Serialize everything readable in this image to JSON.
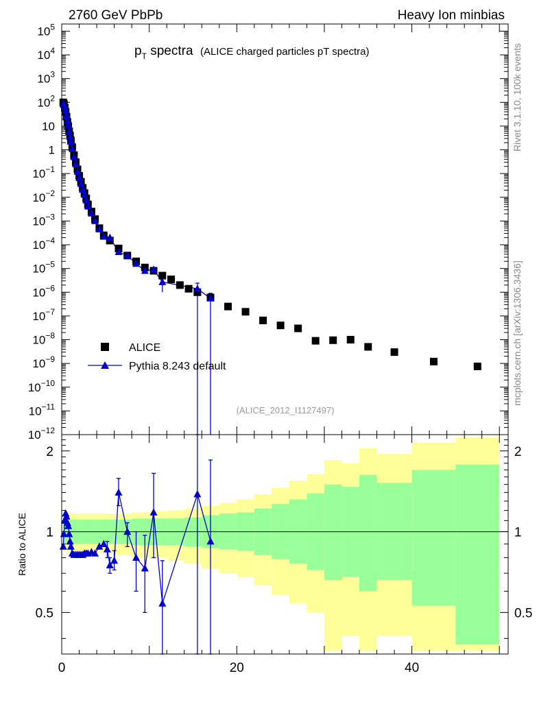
{
  "header": {
    "left": "2760 GeV PbPb",
    "right": "Heavy Ion minbias"
  },
  "title": {
    "main": "p",
    "sub": "T",
    "rest": " spectra",
    "small": "(ALICE charged particles pT spectra)"
  },
  "side_labels": {
    "rivet": "Rivet 3.1.10,  100k events",
    "mcplots": "mcplots.cern.ch [arXiv:1306.3436]"
  },
  "analysis_tag": "(ALICE_2012_I1127497)",
  "ratio_ylabel": "Ratio to ALICE",
  "colors": {
    "alice": "#000000",
    "pythia": "#0000cc",
    "band_outer": "#ffff99",
    "band_inner": "#99ff99"
  },
  "chart_data": [
    {
      "type": "scatter",
      "title": "pT spectra",
      "xlim": [
        0,
        51
      ],
      "ylim": [
        1e-12,
        200000
      ],
      "yscale": "log",
      "ytick_exponents": [
        5,
        4,
        3,
        2,
        1,
        0,
        -1,
        -2,
        -3,
        -4,
        -5,
        -6,
        -7,
        -8,
        -9,
        -10,
        -11,
        -12
      ],
      "legend": {
        "placement": "lower-left",
        "entries": [
          "ALICE",
          "Pythia 8.243 default"
        ]
      },
      "series": [
        {
          "name": "ALICE",
          "marker": "square",
          "x": [
            0.175,
            0.25,
            0.35,
            0.45,
            0.55,
            0.65,
            0.75,
            0.85,
            0.95,
            1.05,
            1.2,
            1.4,
            1.6,
            1.8,
            2.0,
            2.2,
            2.4,
            2.6,
            2.8,
            3.0,
            3.4,
            3.8,
            4.3,
            4.8,
            5.5,
            6.5,
            7.5,
            8.5,
            9.5,
            10.5,
            11.5,
            12.5,
            13.5,
            14.5,
            15.5,
            17.0,
            19.0,
            21.0,
            23.0,
            25.0,
            27.0,
            29.0,
            31.0,
            33.0,
            35.0,
            38.0,
            42.5,
            47.5
          ],
          "y": [
            100,
            85,
            60,
            40,
            25,
            15,
            10,
            6,
            4,
            2.5,
            1.3,
            0.6,
            0.3,
            0.15,
            0.08,
            0.045,
            0.025,
            0.015,
            0.009,
            0.005,
            0.0025,
            0.0012,
            0.0005,
            0.00025,
            0.00015,
            7e-05,
            3.5e-05,
            2e-05,
            1.1e-05,
            8e-06,
            5e-06,
            3.5e-06,
            2e-06,
            1.4e-06,
            1e-06,
            6e-07,
            2.5e-07,
            1.5e-07,
            6.5e-08,
            4e-08,
            3e-08,
            9e-09,
            9.5e-09,
            1e-08,
            5e-09,
            3e-09,
            1.2e-09,
            7.5e-10
          ]
        },
        {
          "name": "Pythia 8.243 default",
          "marker": "triangle",
          "x": [
            0.175,
            0.25,
            0.35,
            0.45,
            0.55,
            0.65,
            0.75,
            0.85,
            0.95,
            1.05,
            1.2,
            1.4,
            1.6,
            1.8,
            2.0,
            2.2,
            2.4,
            2.6,
            2.8,
            3.0,
            3.4,
            3.8,
            4.3,
            4.8,
            5.5,
            6.5,
            7.5,
            8.5,
            9.5,
            10.5,
            11.5,
            15.5,
            17.0
          ],
          "y": [
            90,
            80,
            65,
            45,
            28,
            17,
            11,
            6,
            3.5,
            2.2,
            1.1,
            0.5,
            0.25,
            0.12,
            0.065,
            0.037,
            0.021,
            0.013,
            0.0075,
            0.0041,
            0.0021,
            0.001,
            0.00045,
            0.00022,
            0.0002,
            5e-05,
            3.5e-05,
            1.6e-05,
            8e-06,
            9e-06,
            2.7e-06,
            1.4e-06,
            5.5e-07
          ],
          "err_lo": [
            null,
            null,
            null,
            null,
            null,
            null,
            null,
            null,
            null,
            null,
            null,
            null,
            null,
            null,
            null,
            null,
            null,
            null,
            null,
            null,
            null,
            null,
            null,
            null,
            null,
            null,
            null,
            null,
            null,
            null,
            1e-06,
            1e-12,
            1e-12
          ],
          "err_hi": [
            null,
            null,
            null,
            null,
            null,
            null,
            null,
            null,
            null,
            null,
            null,
            null,
            null,
            null,
            null,
            null,
            null,
            null,
            null,
            null,
            null,
            null,
            null,
            null,
            null,
            null,
            null,
            null,
            null,
            null,
            5e-06,
            2.4e-06,
            9e-07
          ]
        }
      ]
    },
    {
      "type": "line",
      "ylabel": "Ratio to ALICE",
      "xlim": [
        0,
        51
      ],
      "ylim": [
        0.35,
        2.3
      ],
      "yscale": "log",
      "yticks": [
        0.5,
        1,
        2
      ],
      "xticks": [
        0,
        20,
        40
      ],
      "reference_line": 1,
      "bands": {
        "edges": [
          0.15,
          0.3,
          0.6,
          0.8,
          1.0,
          2.0,
          4.0,
          6.0,
          8.0,
          10.0,
          12.0,
          14.0,
          16.0,
          18.0,
          20.0,
          22.0,
          24.0,
          26.0,
          28.0,
          30.0,
          32.0,
          34.0,
          36.0,
          40.0,
          45.0,
          50.0
        ],
        "inner_lo": [
          0.9,
          0.9,
          0.9,
          0.9,
          0.9,
          0.9,
          0.9,
          0.9,
          0.89,
          0.89,
          0.89,
          0.88,
          0.87,
          0.86,
          0.85,
          0.82,
          0.79,
          0.76,
          0.72,
          0.66,
          0.68,
          0.6,
          0.66,
          0.53,
          0.38
        ],
        "inner_hi": [
          1.11,
          1.11,
          1.11,
          1.11,
          1.11,
          1.11,
          1.11,
          1.11,
          1.12,
          1.12,
          1.12,
          1.13,
          1.15,
          1.17,
          1.18,
          1.22,
          1.27,
          1.32,
          1.39,
          1.5,
          1.47,
          1.63,
          1.52,
          1.7,
          1.78
        ],
        "outer_lo": [
          0.85,
          0.85,
          0.84,
          0.84,
          0.83,
          0.84,
          0.84,
          0.82,
          0.8,
          0.8,
          0.78,
          0.76,
          0.73,
          0.7,
          0.68,
          0.63,
          0.58,
          0.54,
          0.5,
          0.36,
          0.41,
          0.36,
          0.41,
          0.36,
          0.36
        ],
        "outer_hi": [
          1.17,
          1.18,
          1.19,
          1.18,
          1.17,
          1.17,
          1.17,
          1.17,
          1.18,
          1.19,
          1.2,
          1.22,
          1.25,
          1.28,
          1.32,
          1.38,
          1.46,
          1.55,
          1.64,
          1.85,
          1.8,
          2.05,
          1.95,
          2.15,
          2.25
        ]
      },
      "series": [
        {
          "name": "Pythia 8.243 default",
          "x": [
            0.175,
            0.25,
            0.35,
            0.45,
            0.55,
            0.65,
            0.75,
            0.85,
            0.95,
            1.05,
            1.2,
            1.4,
            1.6,
            1.8,
            2.0,
            2.2,
            2.4,
            2.6,
            2.8,
            3.0,
            3.4,
            3.8,
            4.3,
            4.8,
            5.2,
            5.5,
            6.0,
            6.5,
            7.5,
            8.5,
            9.5,
            10.5,
            11.5,
            15.5,
            17.0
          ],
          "y": [
            0.88,
            0.98,
            1.1,
            1.17,
            1.14,
            1.08,
            1.05,
            0.98,
            0.92,
            0.88,
            0.83,
            0.82,
            0.82,
            0.82,
            0.82,
            0.82,
            0.82,
            0.83,
            0.83,
            0.83,
            0.84,
            0.83,
            0.88,
            0.9,
            0.86,
            0.75,
            0.78,
            1.4,
            1.0,
            0.8,
            0.73,
            1.18,
            0.54,
            1.38,
            0.92
          ],
          "err_lo": [
            null,
            null,
            null,
            null,
            null,
            null,
            null,
            null,
            null,
            null,
            null,
            null,
            null,
            null,
            null,
            null,
            null,
            null,
            null,
            null,
            null,
            null,
            null,
            null,
            0.8,
            0.7,
            0.72,
            1.25,
            0.88,
            0.6,
            0.5,
            0.8,
            0.3,
            0.3,
            0.3
          ],
          "err_hi": [
            null,
            null,
            null,
            null,
            null,
            null,
            null,
            null,
            null,
            null,
            null,
            null,
            null,
            null,
            null,
            null,
            null,
            null,
            null,
            null,
            null,
            null,
            null,
            null,
            0.92,
            0.8,
            0.85,
            1.58,
            1.08,
            1.0,
            0.97,
            1.65,
            0.78,
            2.3,
            1.85
          ]
        }
      ]
    }
  ]
}
